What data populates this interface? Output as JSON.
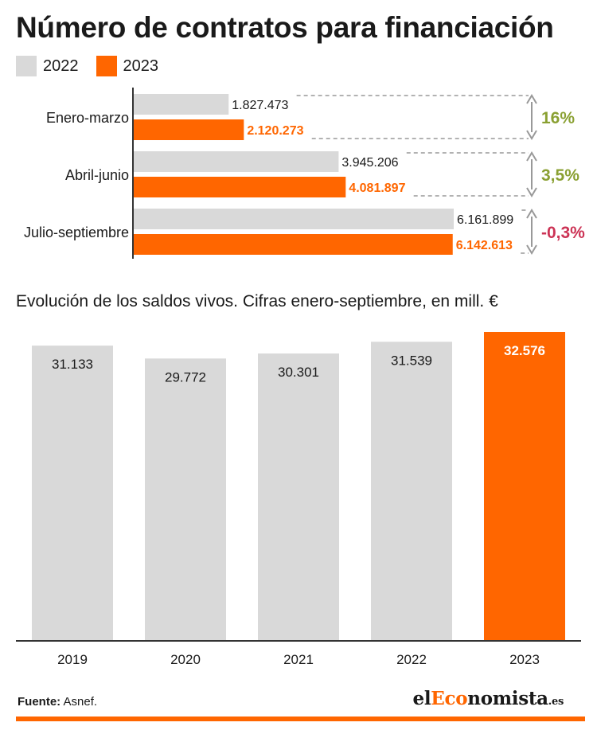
{
  "colors": {
    "y2022": "#d9d9d9",
    "y2023": "#ff6600",
    "positive": "#8aa032",
    "negative": "#cc3355",
    "arrow": "#999999"
  },
  "header": {
    "title": "Número de contratos para financiación"
  },
  "legend": [
    {
      "label": "2022",
      "color": "#d9d9d9"
    },
    {
      "label": "2023",
      "color": "#ff6600"
    }
  ],
  "chart_data": [
    {
      "type": "bar",
      "orientation": "horizontal",
      "title": "Número de contratos para financiación",
      "categories": [
        "Enero-marzo",
        "Abril-junio",
        "Julio-septiembre"
      ],
      "series": [
        {
          "name": "2022",
          "values": [
            1827473,
            3945206,
            6161899
          ],
          "labels": [
            "1.827.473",
            "3.945.206",
            "6.161.899"
          ]
        },
        {
          "name": "2023",
          "values": [
            2120273,
            4081897,
            6142613
          ],
          "labels": [
            "2.120.273",
            "4.081.897",
            "6.142.613"
          ]
        }
      ],
      "annotations": [
        {
          "category": "Enero-marzo",
          "text": "16%",
          "sign": "positive"
        },
        {
          "category": "Abril-junio",
          "text": "3,5%",
          "sign": "positive"
        },
        {
          "category": "Julio-septiembre",
          "text": "-0,3%",
          "sign": "negative"
        }
      ],
      "xlim": [
        0,
        6161899
      ],
      "legend": "top-left",
      "grid": false
    },
    {
      "type": "bar",
      "title": "Evolución de los saldos vivos. Cifras enero-septiembre, en mill. €",
      "categories": [
        "2019",
        "2020",
        "2021",
        "2022",
        "2023"
      ],
      "values": [
        31133,
        29772,
        30301,
        31539,
        32576
      ],
      "labels": [
        "31.133",
        "29.772",
        "30.301",
        "31.539",
        "32.576"
      ],
      "highlight_index": 4,
      "ylim": [
        0,
        32576
      ],
      "grid": false
    }
  ],
  "footer": {
    "source_label": "Fuente:",
    "source_value": " Asnef.",
    "brand_pre": "el",
    "brand_accent": "Eco",
    "brand_post": "nomista",
    "brand_tld": ".es"
  }
}
